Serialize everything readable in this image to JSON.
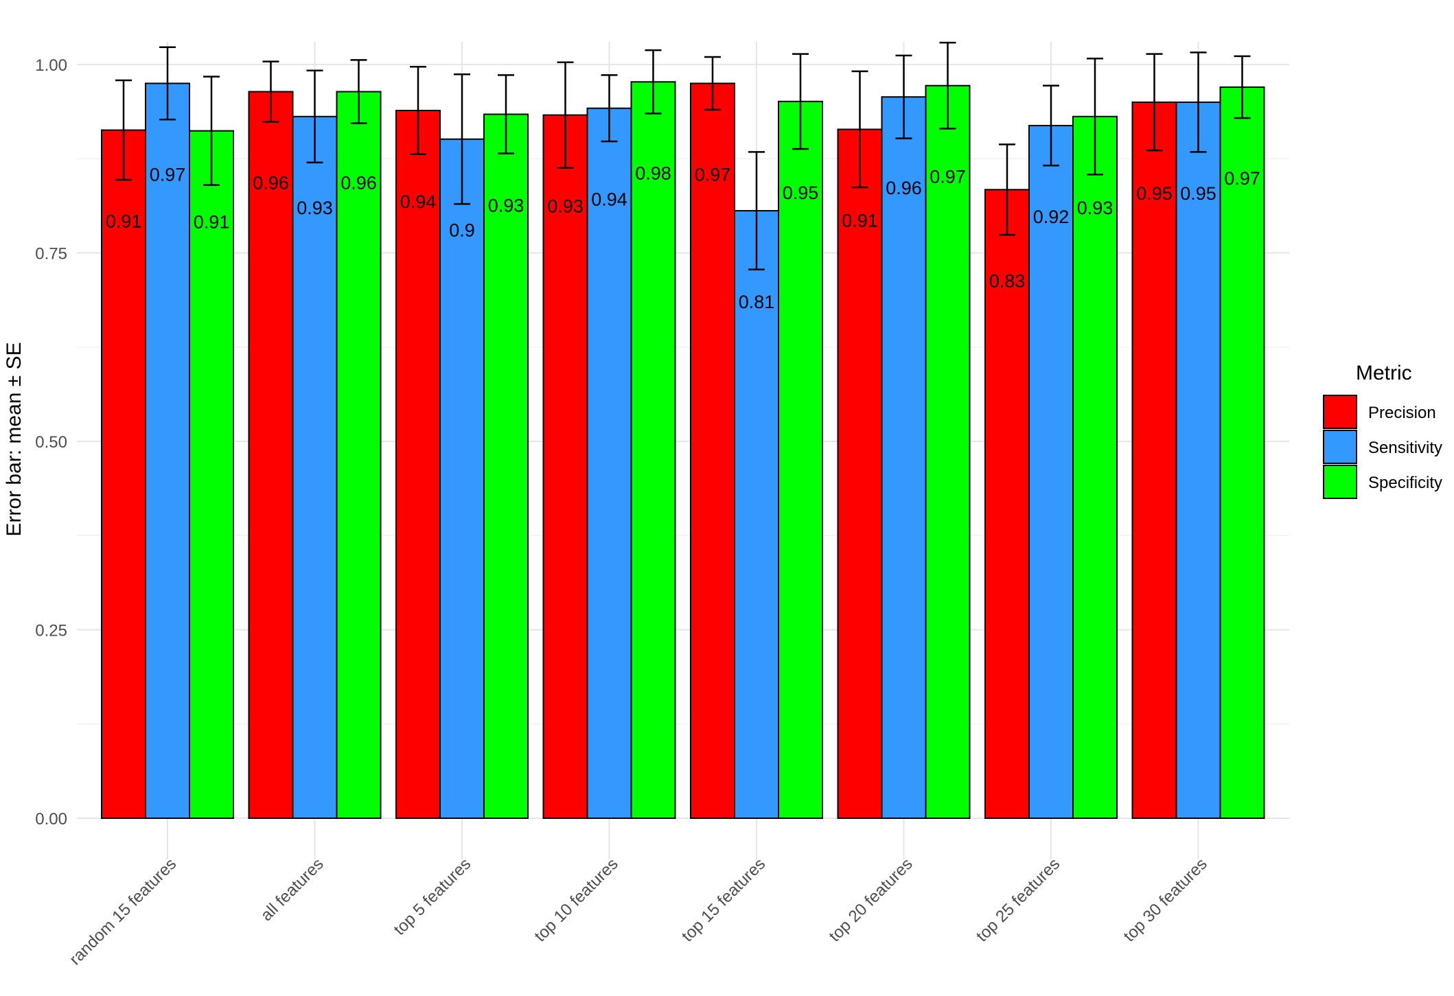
{
  "chart_data": {
    "type": "bar",
    "title": "",
    "xlabel": "",
    "ylabel": "Error bar: mean ± SE",
    "ylim": [
      0,
      1.03
    ],
    "yticks": [
      0,
      0.25,
      0.5,
      0.75,
      1.0
    ],
    "ytick_labels": [
      "0.00",
      "0.25",
      "0.50",
      "0.75",
      "1.00"
    ],
    "grid": true,
    "legend": {
      "title": "Metric",
      "position": "right"
    },
    "categories": [
      "random 15 features",
      "all features",
      "top 5 features",
      "top 10 features",
      "top 15 features",
      "top 20 features",
      "top 25 features",
      "top 30 features"
    ],
    "series": [
      {
        "name": "Precision",
        "color": "#ff0000",
        "values": [
          0.913,
          0.964,
          0.939,
          0.933,
          0.975,
          0.914,
          0.834,
          0.95
        ],
        "err": [
          0.066,
          0.04,
          0.058,
          0.07,
          0.035,
          0.077,
          0.06,
          0.064
        ],
        "labels": [
          "0.91",
          "0.96",
          "0.94",
          "0.93",
          "0.97",
          "0.91",
          "0.83",
          "0.95"
        ]
      },
      {
        "name": "Sensitivity",
        "color": "#3399ff",
        "values": [
          0.975,
          0.931,
          0.901,
          0.942,
          0.806,
          0.957,
          0.919,
          0.95
        ],
        "err": [
          0.048,
          0.061,
          0.086,
          0.044,
          0.078,
          0.055,
          0.053,
          0.066
        ],
        "labels": [
          "0.97",
          "0.93",
          "0.9",
          "0.94",
          "0.81",
          "0.96",
          "0.92",
          "0.95"
        ]
      },
      {
        "name": "Specificity",
        "color": "#00ff00",
        "values": [
          0.912,
          0.964,
          0.934,
          0.977,
          0.951,
          0.972,
          0.931,
          0.97
        ],
        "err": [
          0.072,
          0.042,
          0.052,
          0.042,
          0.063,
          0.057,
          0.077,
          0.041
        ],
        "labels": [
          "0.91",
          "0.96",
          "0.93",
          "0.98",
          "0.95",
          "0.97",
          "0.93",
          "0.97"
        ]
      }
    ]
  }
}
